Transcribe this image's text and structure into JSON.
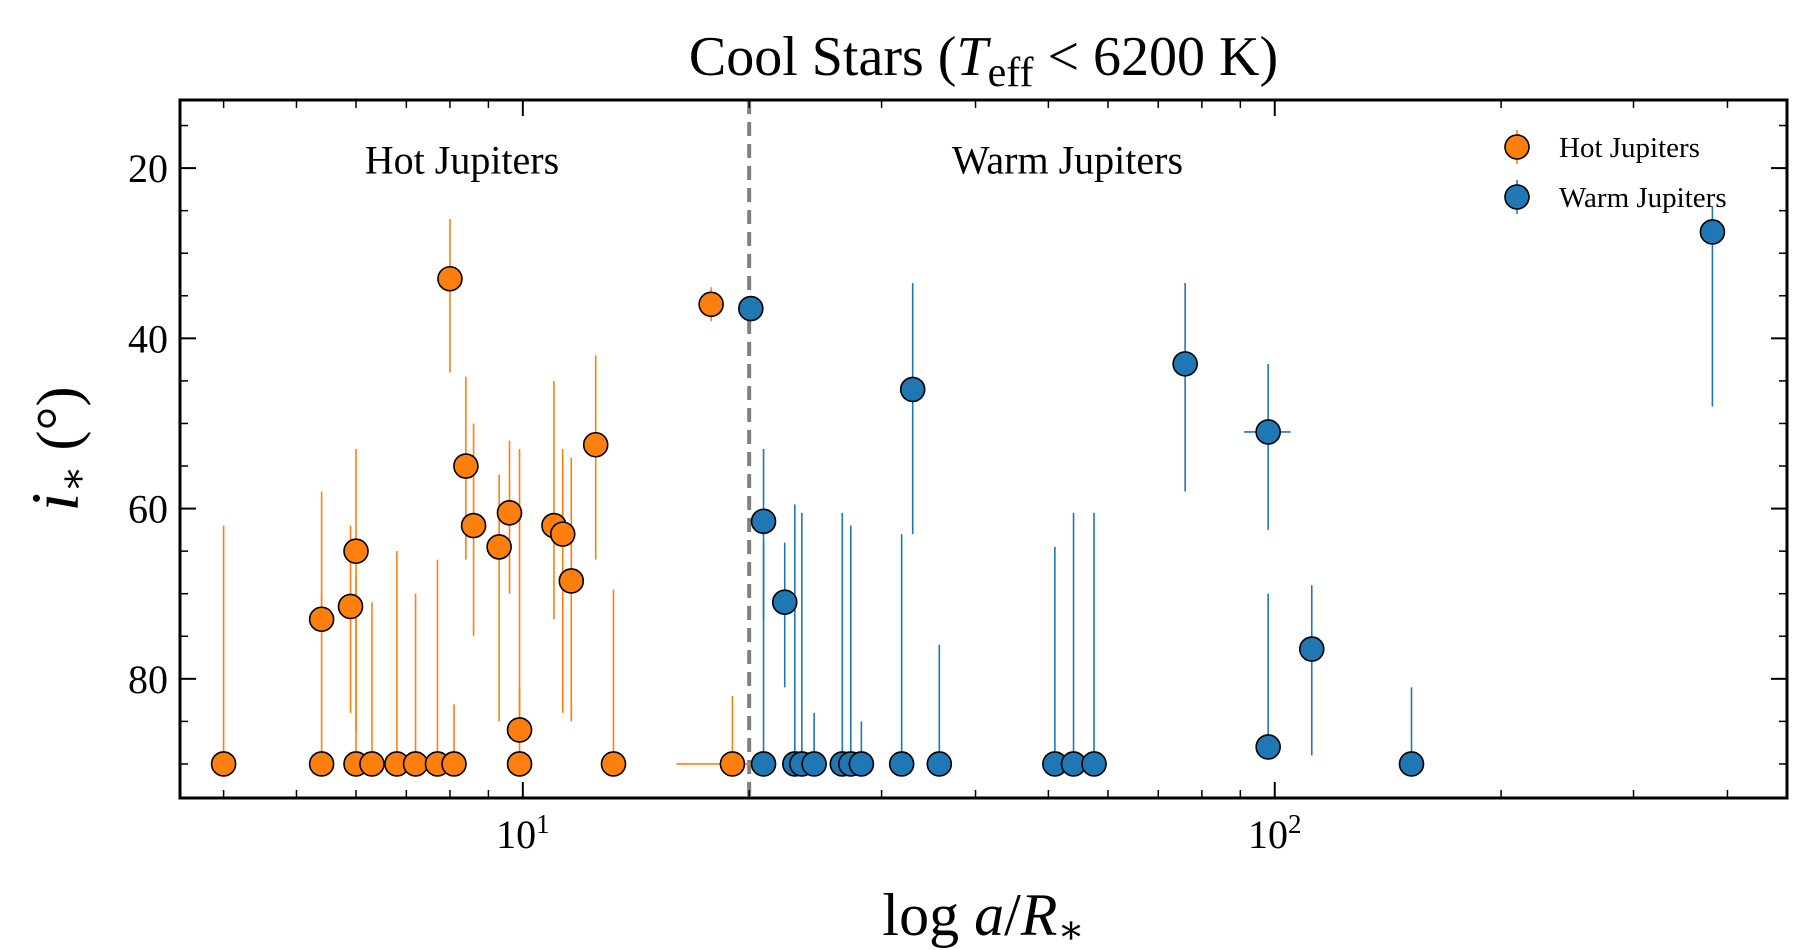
{
  "chart_data": {
    "type": "scatter",
    "title": {
      "prefix": "Cool Stars (",
      "var": "T",
      "sub": "eff",
      "suffix": " < 6200 K)"
    },
    "xlabel": {
      "prefix": "log ",
      "var1": "a",
      "slash": "/",
      "var2": "R",
      "sub": "∗"
    },
    "ylabel": {
      "var": "i",
      "sub": "∗",
      "unit": " (°)"
    },
    "x_scale": "log",
    "xlim": [
      3.5,
      480
    ],
    "ylim": [
      94,
      12
    ],
    "y_inverted": true,
    "y_ticks": [
      20,
      40,
      60,
      80
    ],
    "x_major_ticks": [
      {
        "value": 10,
        "base": "10",
        "exp": "1"
      },
      {
        "value": 100,
        "base": "10",
        "exp": "2"
      }
    ],
    "divider_x": 20,
    "region_labels": [
      {
        "text": "Hot Jupiters",
        "x": 8.3,
        "y": 19
      },
      {
        "text": "Warm Jupiters",
        "x": 53,
        "y": 19
      }
    ],
    "legend_position": "top-right",
    "series": [
      {
        "name": "Hot Jupiters",
        "color": "#ff7f0e",
        "points": [
          {
            "x": 4.0,
            "y": 90,
            "lo": 62
          },
          {
            "x": 5.4,
            "y": 73,
            "lo": 58
          },
          {
            "x": 5.4,
            "y": 90,
            "lo": 70
          },
          {
            "x": 5.9,
            "y": 71.5,
            "lo": 62,
            "hi": 84
          },
          {
            "x": 6.0,
            "y": 65,
            "lo": 53,
            "hi": 86
          },
          {
            "x": 6.0,
            "y": 90,
            "lo": 68
          },
          {
            "x": 6.3,
            "y": 90,
            "lo": 71
          },
          {
            "x": 6.8,
            "y": 90,
            "lo": 65
          },
          {
            "x": 7.2,
            "y": 90,
            "lo": 70
          },
          {
            "x": 7.7,
            "y": 90,
            "lo": 66
          },
          {
            "x": 8.1,
            "y": 90,
            "lo": 83
          },
          {
            "x": 8.0,
            "y": 33,
            "lo": 26,
            "hi": 44
          },
          {
            "x": 8.4,
            "y": 55,
            "lo": 44.5,
            "hi": 66
          },
          {
            "x": 8.6,
            "y": 62,
            "lo": 50,
            "hi": 75
          },
          {
            "x": 9.3,
            "y": 64.5,
            "lo": 56,
            "hi": 85
          },
          {
            "x": 9.6,
            "y": 60.5,
            "lo": 52,
            "hi": 70
          },
          {
            "x": 9.9,
            "y": 86,
            "lo": 81
          },
          {
            "x": 9.9,
            "y": 90,
            "lo": 53
          },
          {
            "x": 11.0,
            "y": 62,
            "lo": 45,
            "hi": 73
          },
          {
            "x": 11.3,
            "y": 63,
            "lo": 53,
            "hi": 84
          },
          {
            "x": 11.6,
            "y": 68.5,
            "lo": 54,
            "hi": 85
          },
          {
            "x": 12.5,
            "y": 52.5,
            "lo": 42,
            "hi": 66
          },
          {
            "x": 13.2,
            "y": 90,
            "lo": 69.5
          },
          {
            "x": 17.8,
            "y": 36,
            "lo": 34,
            "hi": 38
          },
          {
            "x": 19.0,
            "y": 90,
            "lo": 82,
            "xlo": 16.0,
            "xhi": 21.5
          }
        ]
      },
      {
        "name": "Warm Jupiters",
        "color": "#1f77b4",
        "points": [
          {
            "x": 20.1,
            "y": 36.5
          },
          {
            "x": 20.9,
            "y": 61.5,
            "lo": 53,
            "hi": 73
          },
          {
            "x": 20.9,
            "y": 90,
            "lo": 64
          },
          {
            "x": 22.3,
            "y": 71,
            "lo": 64,
            "hi": 81
          },
          {
            "x": 23.0,
            "y": 90,
            "lo": 59.5
          },
          {
            "x": 23.5,
            "y": 90,
            "lo": 60.5
          },
          {
            "x": 24.4,
            "y": 90,
            "lo": 84
          },
          {
            "x": 26.6,
            "y": 90,
            "lo": 60.5
          },
          {
            "x": 27.3,
            "y": 90,
            "lo": 62
          },
          {
            "x": 28.2,
            "y": 90,
            "lo": 85
          },
          {
            "x": 31.9,
            "y": 90,
            "lo": 63
          },
          {
            "x": 33.0,
            "y": 46,
            "lo": 33.5,
            "hi": 63
          },
          {
            "x": 35.8,
            "y": 90,
            "lo": 76
          },
          {
            "x": 51.0,
            "y": 90,
            "lo": 64.5
          },
          {
            "x": 54.0,
            "y": 90,
            "lo": 60.5
          },
          {
            "x": 57.5,
            "y": 90,
            "lo": 60.5
          },
          {
            "x": 76.0,
            "y": 43,
            "lo": 33.5,
            "hi": 58
          },
          {
            "x": 98.0,
            "y": 51,
            "lo": 43,
            "hi": 62.5,
            "xlo": 91,
            "xhi": 105
          },
          {
            "x": 98.0,
            "y": 88,
            "lo": 70
          },
          {
            "x": 112.0,
            "y": 76.5,
            "lo": 69,
            "hi": 89
          },
          {
            "x": 152.0,
            "y": 90,
            "lo": 81
          },
          {
            "x": 382.0,
            "y": 27.5,
            "lo": 24.5,
            "hi": 48
          }
        ]
      }
    ]
  }
}
